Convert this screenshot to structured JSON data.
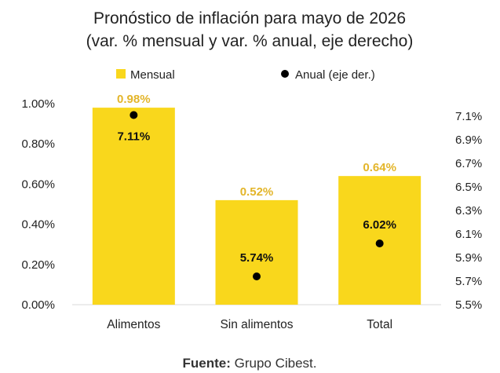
{
  "chart_data": {
    "type": "bar",
    "title_line1": "Pronóstico de inflación para mayo de 2026",
    "title_line2": "(var. % mensual y var. % anual, eje derecho)",
    "categories": [
      "Alimentos",
      "Sin alimentos",
      "Total"
    ],
    "series": [
      {
        "name": "Mensual",
        "kind": "bar",
        "axis": "left",
        "color": "#f9d71c",
        "values": [
          0.98,
          0.52,
          0.64
        ],
        "labels": [
          "0.98%",
          "0.52%",
          "0.64%"
        ]
      },
      {
        "name": "Anual (eje der.)",
        "kind": "scatter",
        "axis": "right",
        "color": "#000000",
        "values": [
          7.11,
          5.74,
          6.02
        ],
        "labels": [
          "7.11%",
          "5.74%",
          "6.02%"
        ]
      }
    ],
    "left_axis": {
      "ylim": [
        0,
        1.0
      ],
      "ticks": [
        0,
        0.2,
        0.4,
        0.6,
        0.8,
        1.0
      ],
      "tick_labels": [
        "0.00%",
        "0.20%",
        "0.40%",
        "0.60%",
        "0.80%",
        "1.00%"
      ]
    },
    "right_axis": {
      "ylim": [
        5.5,
        7.1
      ],
      "ticks": [
        5.5,
        5.7,
        5.9,
        6.1,
        6.3,
        6.5,
        6.7,
        6.9,
        7.1
      ],
      "tick_labels": [
        "5.5%",
        "5.7%",
        "5.9%",
        "6.1%",
        "6.3%",
        "6.5%",
        "6.7%",
        "6.9%",
        "7.1%"
      ]
    },
    "grid": false,
    "legend_position": "top-center",
    "source_label": "Fuente:",
    "source_text": "Grupo Cibest."
  }
}
